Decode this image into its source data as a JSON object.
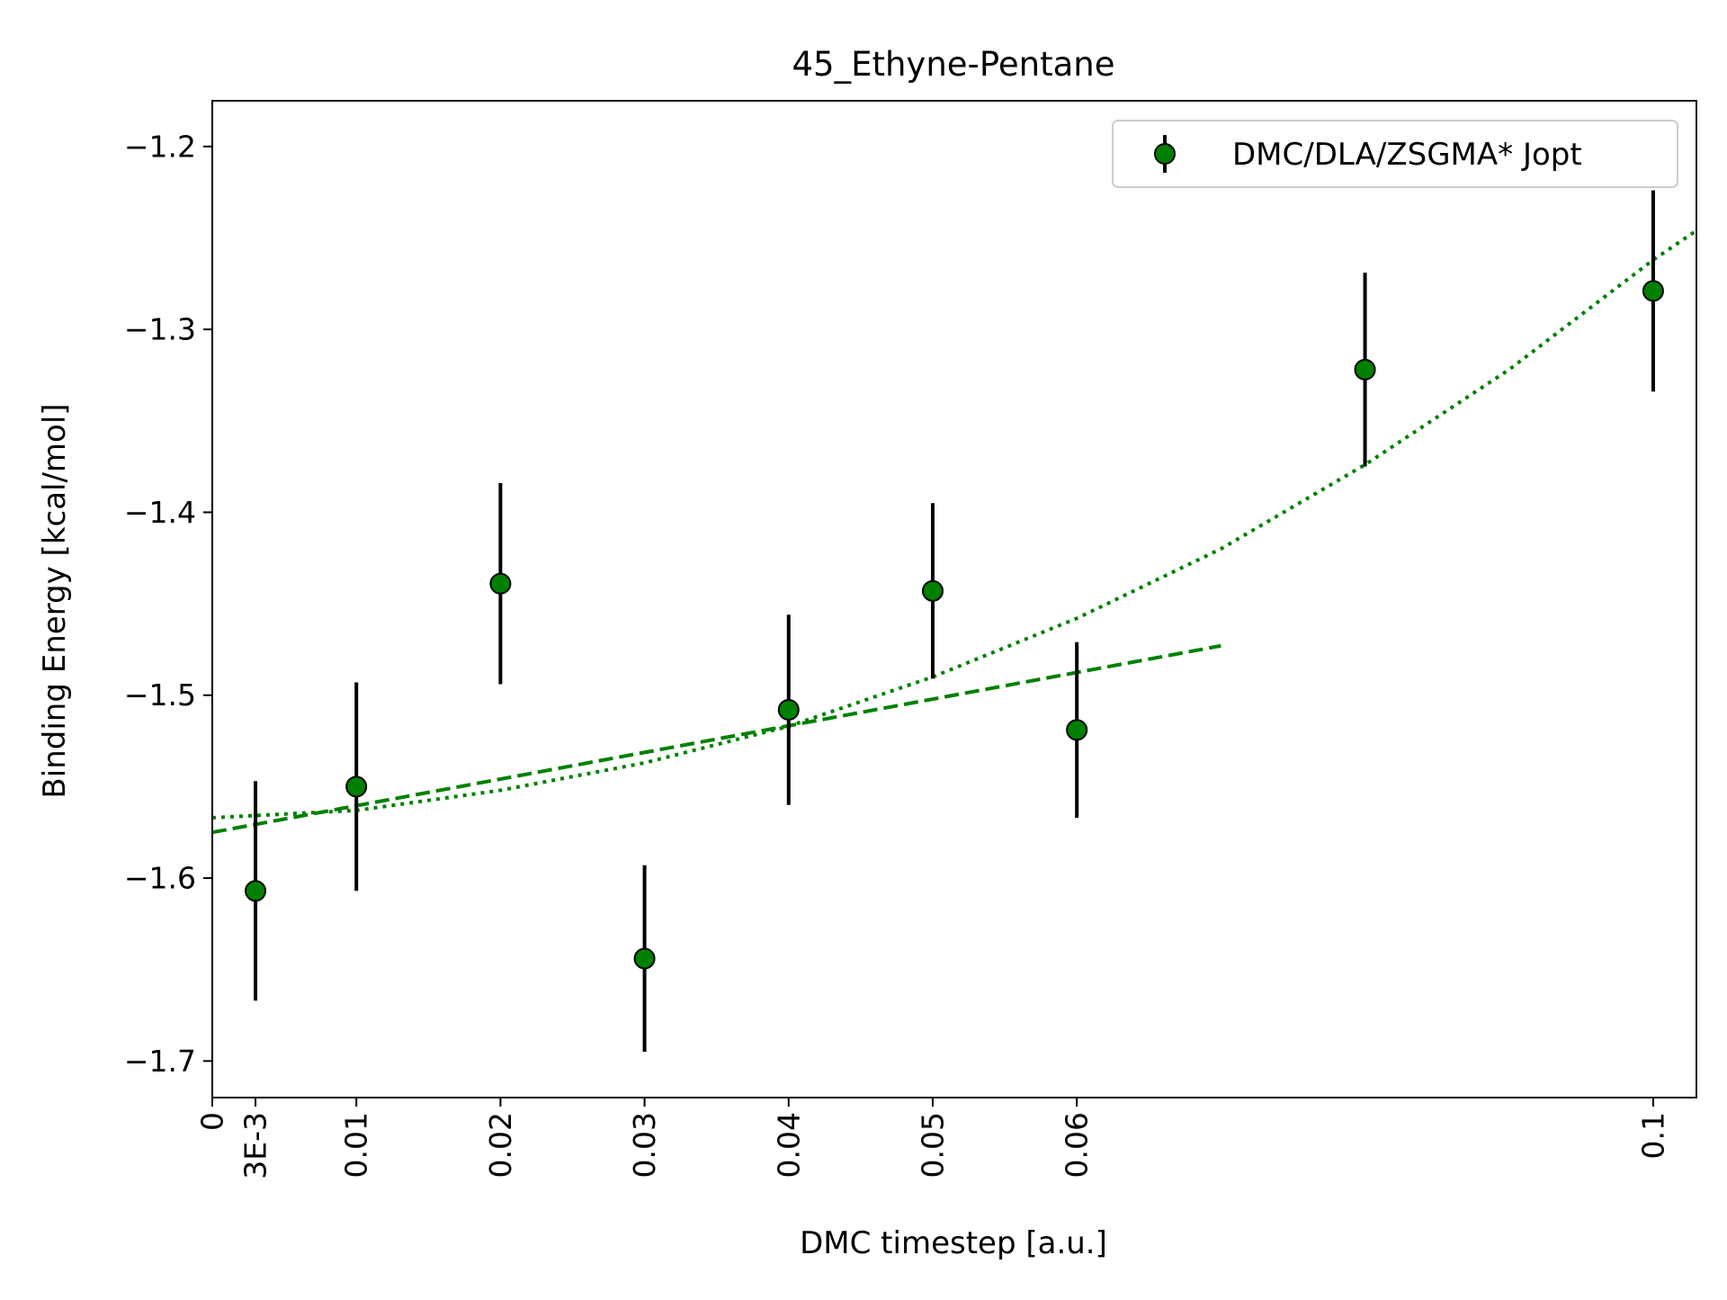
{
  "chart_data": {
    "type": "scatter",
    "title": "45_Ethyne-Pentane",
    "xlabel": "DMC timestep [a.u.]",
    "ylabel": "Binding Energy [kcal/mol]",
    "xlim": [
      0,
      0.103
    ],
    "ylim": [
      -1.72,
      -1.175
    ],
    "x_ticks": [
      {
        "value": 0,
        "label": "0"
      },
      {
        "value": 0.003,
        "label": "3E-3"
      },
      {
        "value": 0.01,
        "label": "0.01"
      },
      {
        "value": 0.02,
        "label": "0.02"
      },
      {
        "value": 0.03,
        "label": "0.03"
      },
      {
        "value": 0.04,
        "label": "0.04"
      },
      {
        "value": 0.05,
        "label": "0.05"
      },
      {
        "value": 0.06,
        "label": "0.06"
      },
      {
        "value": 0.1,
        "label": "0.1"
      }
    ],
    "y_ticks": [
      {
        "value": -1.2,
        "label": "−1.2"
      },
      {
        "value": -1.3,
        "label": "−1.3"
      },
      {
        "value": -1.4,
        "label": "−1.4"
      },
      {
        "value": -1.5,
        "label": "−1.5"
      },
      {
        "value": -1.6,
        "label": "−1.6"
      },
      {
        "value": -1.7,
        "label": "−1.7"
      }
    ],
    "grid": false,
    "legend": {
      "position": "top-right",
      "entries": [
        "DMC/DLA/ZSGMA* Jopt"
      ]
    },
    "series": [
      {
        "name": "DMC/DLA/ZSGMA* Jopt",
        "kind": "errorbar",
        "marker_color": "#008000",
        "errorbar_color": "#000000",
        "points": [
          {
            "x": 0.003,
            "y": -1.607,
            "err": 0.06
          },
          {
            "x": 0.01,
            "y": -1.55,
            "err": 0.057
          },
          {
            "x": 0.02,
            "y": -1.439,
            "err": 0.055
          },
          {
            "x": 0.03,
            "y": -1.644,
            "err": 0.051
          },
          {
            "x": 0.04,
            "y": -1.508,
            "err": 0.052
          },
          {
            "x": 0.05,
            "y": -1.443,
            "err": 0.048
          },
          {
            "x": 0.06,
            "y": -1.519,
            "err": 0.048
          },
          {
            "x": 0.08,
            "y": -1.322,
            "err": 0.053
          },
          {
            "x": 0.1,
            "y": -1.279,
            "err": 0.055
          }
        ]
      },
      {
        "kind": "fit-line",
        "style": "dashed",
        "color": "#008000",
        "x": [
          0,
          0.07
        ],
        "y": [
          -1.575,
          -1.473
        ]
      },
      {
        "kind": "fit-line",
        "style": "dotted",
        "color": "#008000",
        "x": [
          0,
          0.01,
          0.02,
          0.03,
          0.04,
          0.05,
          0.06,
          0.07,
          0.08,
          0.09,
          0.1,
          0.103
        ],
        "y": [
          -1.567,
          -1.563,
          -1.552,
          -1.537,
          -1.517,
          -1.49,
          -1.458,
          -1.42,
          -1.374,
          -1.322,
          -1.262,
          -1.246
        ]
      }
    ]
  }
}
